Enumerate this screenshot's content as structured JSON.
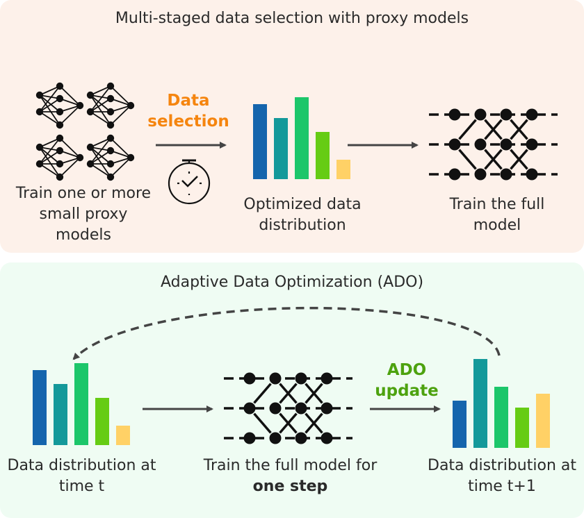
{
  "top": {
    "title": "Multi-staged data selection with proxy models",
    "proxy_label": "Train one or more small proxy models",
    "selection_label": "Data selection",
    "optimized_label": "Optimized data distribution",
    "full_label": "Train the full model"
  },
  "bottom": {
    "title": "Adaptive Data Optimization (ADO)",
    "dist_t_label": "Data distribution at time t",
    "train_label_pre": "Train the full model for ",
    "train_label_bold": "one step",
    "update_label": "ADO update",
    "dist_t1_label": "Data distribution at time t+1"
  },
  "colors": {
    "orange_accent": "#f5850f",
    "green_accent": "#4da20f",
    "bars": [
      "#1565ad",
      "#14999a",
      "#1cc66a",
      "#66cc14",
      "#ffd166"
    ],
    "arrow": "#444444"
  },
  "icons": [
    "neural-network-icon",
    "stopwatch-icon",
    "bar-chart-icon",
    "network-diagram-icon"
  ],
  "chart_data": [
    {
      "type": "bar",
      "values": [
        108,
        88,
        118,
        68,
        28
      ],
      "title": ""
    },
    {
      "type": "bar",
      "values": [
        108,
        88,
        118,
        68,
        28
      ],
      "title": ""
    },
    {
      "type": "bar",
      "values": [
        68,
        128,
        88,
        58,
        78
      ],
      "title": ""
    }
  ]
}
